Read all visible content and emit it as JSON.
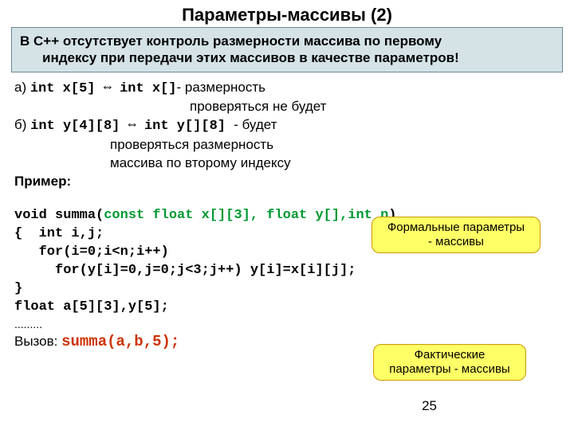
{
  "title": "Параметры-массивы (2)",
  "info": {
    "line1": "В С++ отсутствует контроль размерности массива по первому",
    "line2": "индексу при передачи этих массивов в качестве параметров!"
  },
  "item_a": {
    "label": "а)",
    "code1": "int x[5] ",
    "arrow": "⇔",
    "code2": " int x[]",
    "tail": "- размерность",
    "line2": "проверяться не будет"
  },
  "item_b": {
    "label": "б)",
    "code1": "int y[4][8] ",
    "arrow": "⇔",
    "code2": " int y[][8] ",
    "tail": "- будет",
    "line2": "проверяться размерность",
    "line3": "массива по второму индексу"
  },
  "example_label": "Пример:",
  "code": {
    "l1a": "void summa(",
    "l1b": "const float x[][3], float y[],int n",
    "l1c": ")",
    "l2": "{  int i,j;",
    "l3": "   for(i=0;i<n;i++)",
    "l4": "     for(y[i]=0,j=0;j<3;j++) y[i]=x[i][j];",
    "l5": "}",
    "l6": "float a[5][3],y[5];",
    "dots": ".........",
    "call_label": "Вызов: ",
    "call_code": "summa(a,b,5);"
  },
  "callouts": {
    "top1": "Формальные параметры",
    "top2": "- массивы",
    "bot1": "Фактические",
    "bot2": "параметры - массивы"
  },
  "page": "25",
  "colors": {
    "info_bg": "#d5e3e7",
    "info_border": "#6b8a93",
    "callout_bg": "#ffff66",
    "callout_border": "#cc9900",
    "code_green": "#009933",
    "call_red": "#cc3300"
  }
}
